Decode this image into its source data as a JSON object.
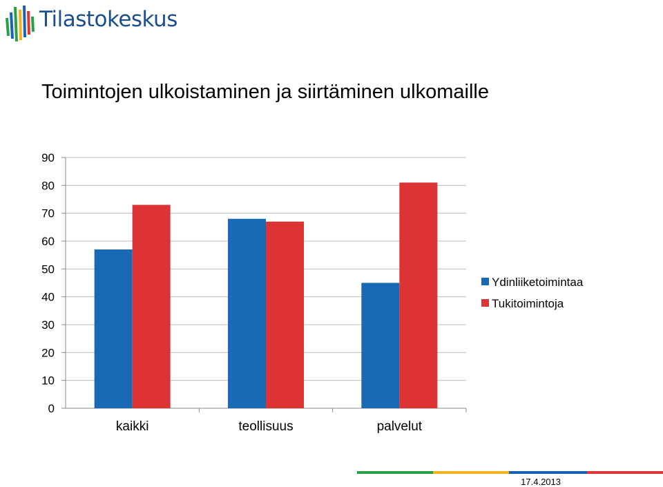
{
  "brand": {
    "name": "Tilastokeskus",
    "colors": {
      "text": "#1a4e8c",
      "green": "#2e9e46",
      "yellow": "#f2b21b",
      "blue": "#1a63b4",
      "red": "#e03636"
    }
  },
  "slide": {
    "title": "Toimintojen ulkoistaminen ja siirtäminen ulkomaille",
    "date": "17.4.2013"
  },
  "chart_data": {
    "type": "bar",
    "title": "",
    "xlabel": "",
    "ylabel": "",
    "categories": [
      "kaikki",
      "teollisuus",
      "palvelut"
    ],
    "series": [
      {
        "name": "Ydinliiketoimintaa",
        "color": "#1a69b4",
        "values": [
          57,
          68,
          45
        ]
      },
      {
        "name": "Tukitoimintoja",
        "color": "#dc3434",
        "values": [
          73,
          67,
          81
        ]
      }
    ],
    "ylim": [
      0,
      90
    ],
    "yticks": [
      0,
      10,
      20,
      30,
      40,
      50,
      60,
      70,
      80,
      90
    ],
    "grid": true,
    "legend": "right"
  }
}
